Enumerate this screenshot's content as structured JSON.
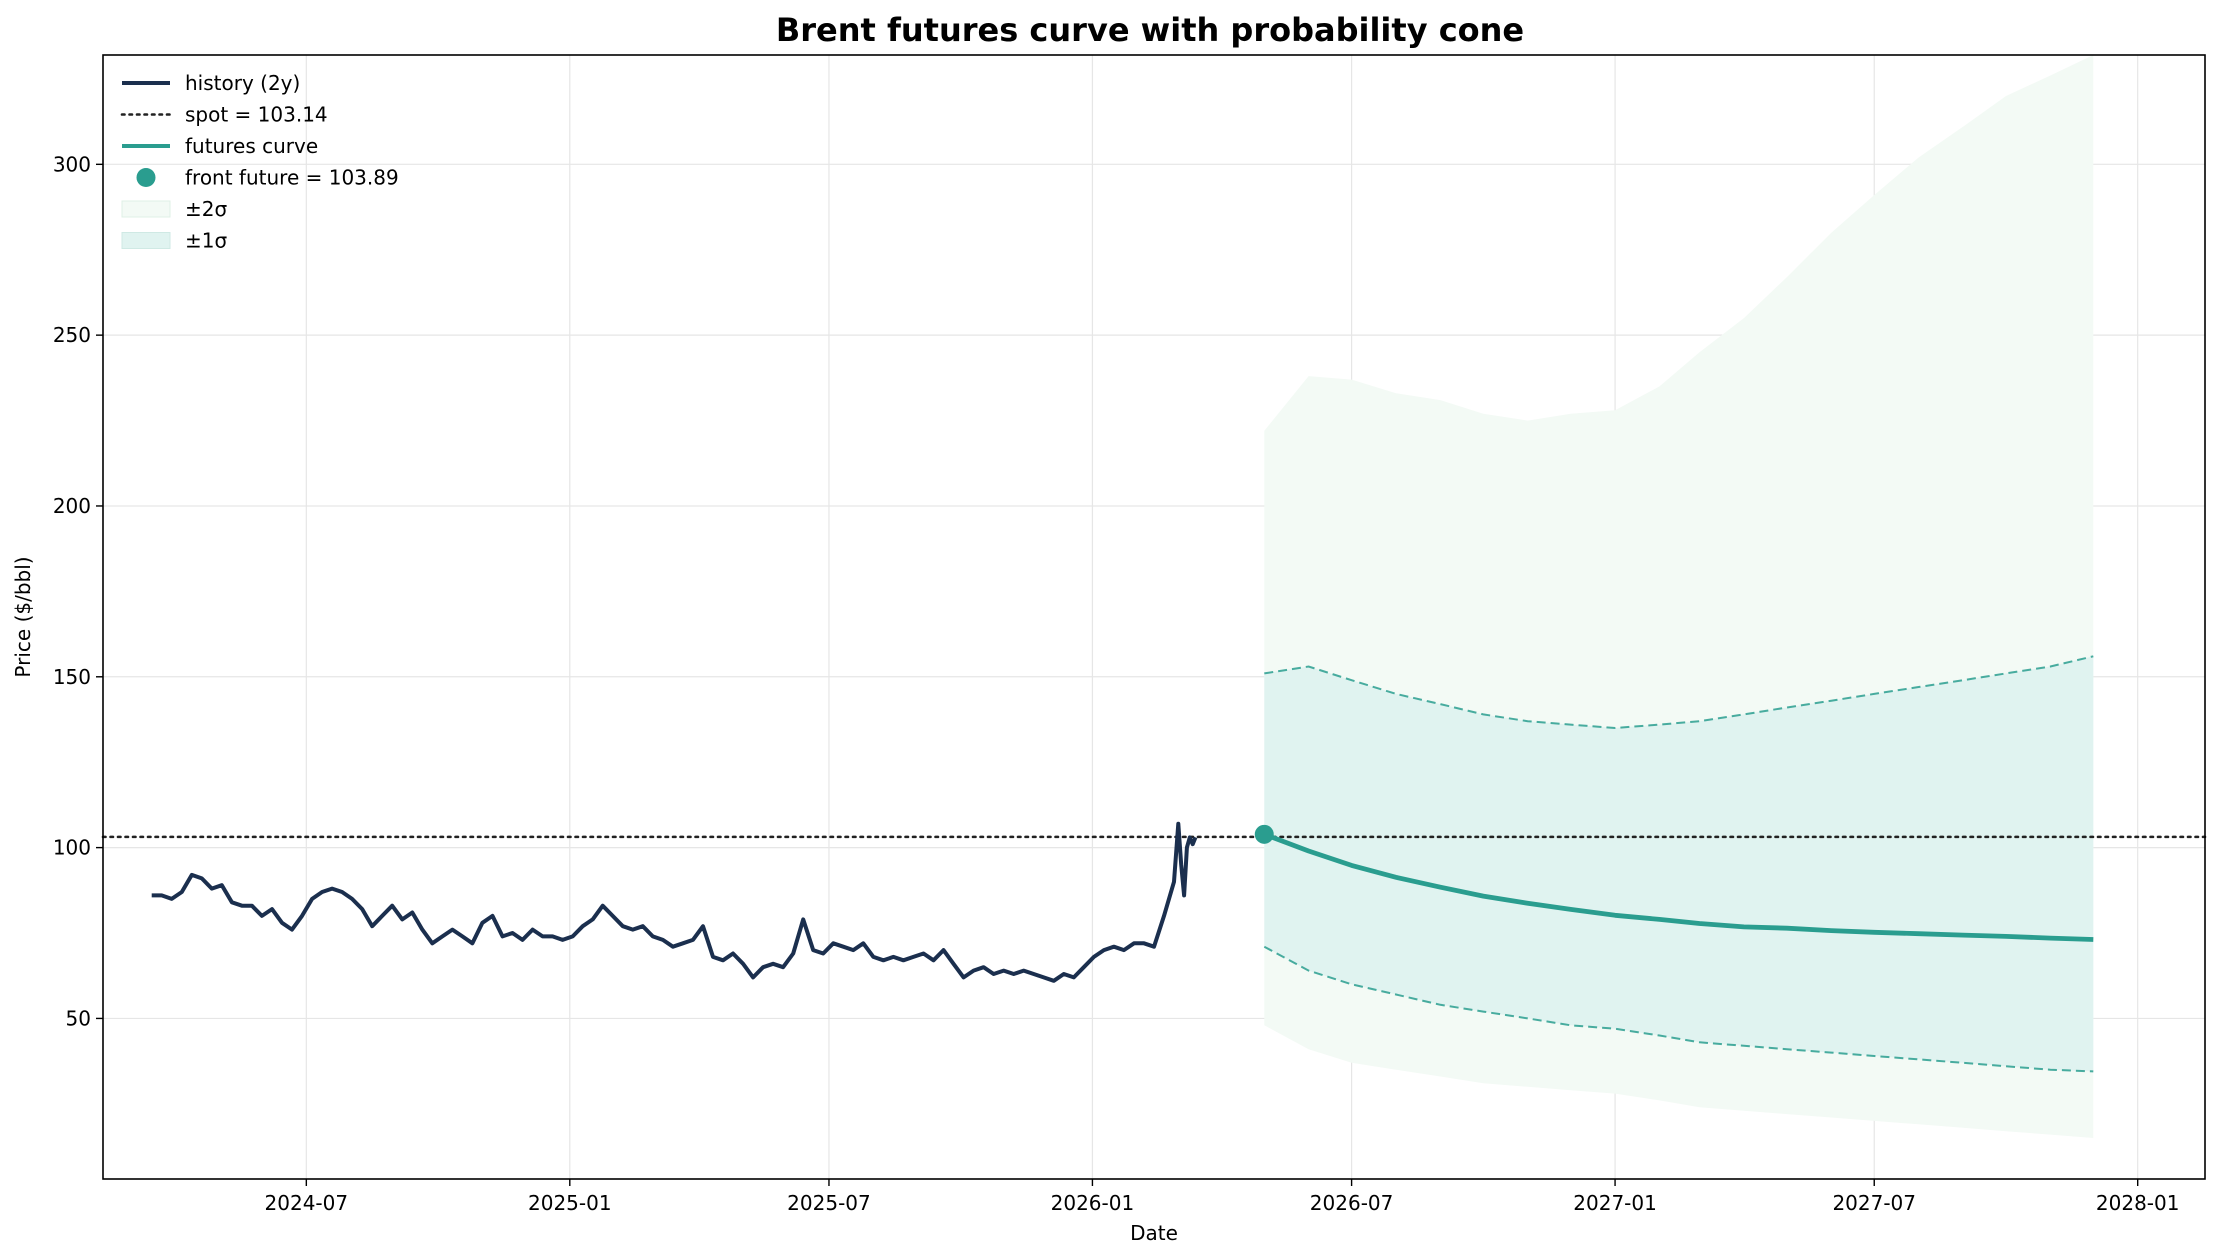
{
  "chart_data": {
    "type": "line",
    "title": "Brent futures curve with probability cone",
    "xlabel": "Date",
    "ylabel": "Price ($/bbl)",
    "xlim": [
      "2024-02-10",
      "2028-02-17"
    ],
    "ylim": [
      3,
      332
    ],
    "x_ticks": [
      "2024-07-01",
      "2025-01-01",
      "2025-07-01",
      "2026-01-01",
      "2026-07-01",
      "2027-01-01",
      "2027-07-01",
      "2028-01-01"
    ],
    "x_tick_labels": [
      "2024-07",
      "2025-01",
      "2025-07",
      "2026-01",
      "2026-07",
      "2027-01",
      "2027-07",
      "2028-01"
    ],
    "y_ticks": [
      50,
      100,
      150,
      200,
      250,
      300
    ],
    "y_tick_labels": [
      "50",
      "100",
      "150",
      "200",
      "250",
      "300"
    ],
    "grid": true,
    "legend_position": "top-left",
    "colors": {
      "history": "#1b2f4e",
      "spot": "#222222",
      "futures": "#2a9d8f",
      "band_1sigma": "#e0f3f0",
      "band_2sigma": "#f3faf5",
      "sigma_edge": "#2a9d8f"
    },
    "legend": [
      {
        "key": "history",
        "label": "history (2y)",
        "style": "line"
      },
      {
        "key": "spot",
        "label": "spot = 103.14",
        "style": "dotted"
      },
      {
        "key": "futures",
        "label": "futures curve",
        "style": "line"
      },
      {
        "key": "front",
        "label": "front future = 103.89",
        "style": "marker"
      },
      {
        "key": "band2",
        "label": "±2σ",
        "style": "patch2"
      },
      {
        "key": "band1",
        "label": "±1σ",
        "style": "patch1"
      }
    ],
    "spot": 103.14,
    "front_future": {
      "x": "2026-05-01",
      "y": 103.89
    },
    "history": {
      "x": [
        "2024-03-15",
        "2024-03-22",
        "2024-03-29",
        "2024-04-05",
        "2024-04-12",
        "2024-04-19",
        "2024-04-26",
        "2024-05-03",
        "2024-05-10",
        "2024-05-17",
        "2024-05-24",
        "2024-05-31",
        "2024-06-07",
        "2024-06-14",
        "2024-06-21",
        "2024-06-28",
        "2024-07-05",
        "2024-07-12",
        "2024-07-19",
        "2024-07-26",
        "2024-08-02",
        "2024-08-09",
        "2024-08-16",
        "2024-08-23",
        "2024-08-30",
        "2024-09-06",
        "2024-09-13",
        "2024-09-20",
        "2024-09-27",
        "2024-10-04",
        "2024-10-11",
        "2024-10-18",
        "2024-10-25",
        "2024-11-01",
        "2024-11-08",
        "2024-11-15",
        "2024-11-22",
        "2024-11-29",
        "2024-12-06",
        "2024-12-13",
        "2024-12-20",
        "2024-12-27",
        "2025-01-03",
        "2025-01-10",
        "2025-01-17",
        "2025-01-24",
        "2025-01-31",
        "2025-02-07",
        "2025-02-14",
        "2025-02-21",
        "2025-02-28",
        "2025-03-07",
        "2025-03-14",
        "2025-03-21",
        "2025-03-28",
        "2025-04-04",
        "2025-04-11",
        "2025-04-18",
        "2025-04-25",
        "2025-05-02",
        "2025-05-09",
        "2025-05-16",
        "2025-05-23",
        "2025-05-30",
        "2025-06-06",
        "2025-06-13",
        "2025-06-20",
        "2025-06-27",
        "2025-07-04",
        "2025-07-11",
        "2025-07-18",
        "2025-07-25",
        "2025-08-01",
        "2025-08-08",
        "2025-08-15",
        "2025-08-22",
        "2025-08-29",
        "2025-09-05",
        "2025-09-12",
        "2025-09-19",
        "2025-09-26",
        "2025-10-03",
        "2025-10-10",
        "2025-10-17",
        "2025-10-24",
        "2025-10-31",
        "2025-11-07",
        "2025-11-14",
        "2025-11-21",
        "2025-11-28",
        "2025-12-05",
        "2025-12-12",
        "2025-12-19",
        "2025-12-26",
        "2026-01-02",
        "2026-01-09",
        "2026-01-16",
        "2026-01-23",
        "2026-01-30",
        "2026-02-06",
        "2026-02-13",
        "2026-02-20",
        "2026-02-27",
        "2026-03-02",
        "2026-03-04",
        "2026-03-06",
        "2026-03-08",
        "2026-03-10",
        "2026-03-12",
        "2026-03-14"
      ],
      "y": [
        86,
        86,
        85,
        87,
        92,
        91,
        88,
        89,
        84,
        83,
        83,
        80,
        82,
        78,
        76,
        80,
        85,
        87,
        88,
        87,
        85,
        82,
        77,
        80,
        83,
        79,
        81,
        76,
        72,
        74,
        76,
        74,
        72,
        78,
        80,
        74,
        75,
        73,
        76,
        74,
        74,
        73,
        74,
        77,
        79,
        83,
        80,
        77,
        76,
        77,
        74,
        73,
        71,
        72,
        73,
        77,
        68,
        67,
        69,
        66,
        62,
        65,
        66,
        65,
        69,
        79,
        70,
        69,
        72,
        71,
        70,
        72,
        68,
        67,
        68,
        67,
        68,
        69,
        67,
        70,
        66,
        62,
        64,
        65,
        63,
        64,
        63,
        64,
        63,
        62,
        61,
        63,
        62,
        65,
        68,
        70,
        71,
        70,
        72,
        72,
        71,
        80,
        90,
        107,
        95,
        86,
        100,
        103,
        101,
        103
      ]
    },
    "forecast": {
      "x": [
        "2026-05-01",
        "2026-06-01",
        "2026-07-01",
        "2026-08-01",
        "2026-09-01",
        "2026-10-01",
        "2026-11-01",
        "2026-12-01",
        "2027-01-01",
        "2027-02-01",
        "2027-03-01",
        "2027-04-01",
        "2027-05-01",
        "2027-06-01",
        "2027-07-01",
        "2027-08-01",
        "2027-09-01",
        "2027-10-01",
        "2027-11-01",
        "2027-12-01"
      ],
      "futures": [
        103.89,
        99.0,
        94.8,
        91.3,
        88.4,
        85.8,
        83.7,
        81.9,
        80.2,
        79.0,
        77.8,
        76.8,
        76.4,
        75.7,
        75.2,
        74.8,
        74.4,
        74.0,
        73.5,
        73.1
      ],
      "plus1sigma": [
        151,
        153,
        149,
        145,
        142,
        139,
        137,
        136,
        135,
        136,
        137,
        139,
        141,
        143,
        145,
        147,
        149,
        151,
        153,
        156
      ],
      "minus1sigma": [
        71,
        64,
        60,
        57,
        54,
        52,
        50,
        48,
        47,
        45,
        43,
        42,
        41,
        40,
        39,
        38,
        37,
        36,
        35,
        34.5
      ],
      "plus2sigma": [
        222,
        238,
        237,
        233,
        231,
        227,
        225,
        227,
        228,
        235,
        245,
        255,
        267,
        280,
        291,
        302,
        311,
        320,
        326,
        332
      ],
      "minus2sigma": [
        48,
        41,
        37,
        35,
        33,
        31,
        30,
        29,
        28,
        26,
        24,
        23,
        22,
        21,
        20,
        19,
        18,
        17,
        16,
        15
      ]
    }
  }
}
